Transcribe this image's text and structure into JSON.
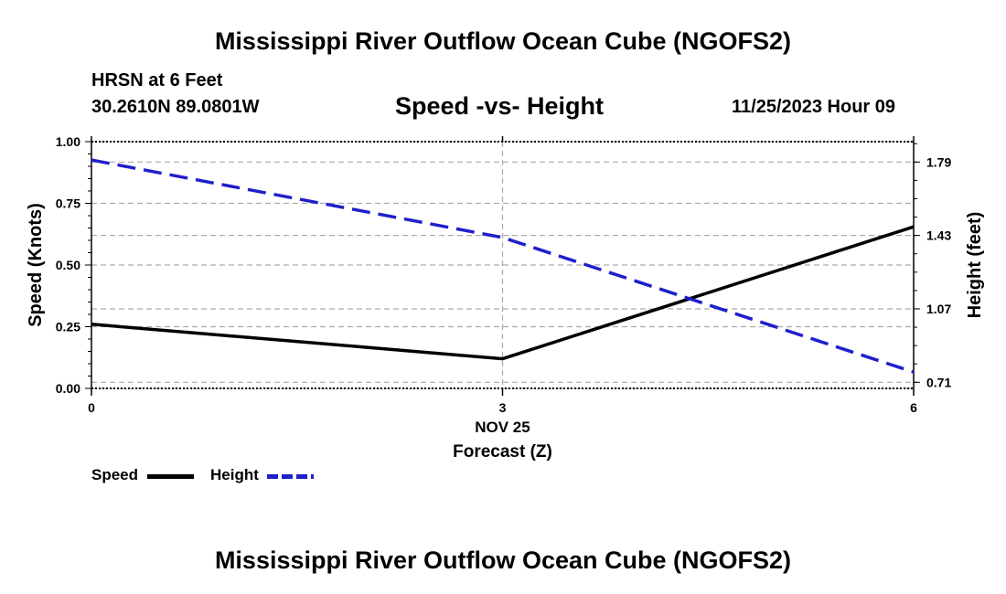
{
  "header": {
    "title": "Mississippi River Outflow Ocean Cube (NGOFS2)",
    "station": "HRSN at 6 Feet",
    "coords": "30.2610N  89.0801W",
    "subtitle": "Speed -vs- Height",
    "datetime": "11/25/2023 Hour 09"
  },
  "footer": {
    "title": "Mississippi River Outflow Ocean Cube (NGOFS2)"
  },
  "legend": {
    "speed_label": "Speed",
    "height_label": "Height",
    "speed_color": "#000000",
    "height_color": "#1f1fcc"
  },
  "chart_data": {
    "type": "line",
    "x": [
      0,
      3,
      6
    ],
    "xlim": [
      0,
      6
    ],
    "xticks": [
      "0",
      "3",
      "6"
    ],
    "xlabel_date": "NOV 25",
    "xlabel": "Forecast (Z)",
    "y_left": {
      "label": "Speed (Knots)",
      "lim": [
        0,
        1
      ],
      "ticks": [
        "0.00",
        "0.25",
        "0.50",
        "0.75",
        "1.00"
      ]
    },
    "y_right": {
      "label": "Height (feet)",
      "lim": [
        0.68,
        1.89
      ],
      "ticks": [
        "0.71",
        "1.07",
        "1.43",
        "1.79"
      ]
    },
    "series": [
      {
        "name": "Speed",
        "axis": "left",
        "values": [
          0.26,
          0.12,
          0.655
        ],
        "style": "solid"
      },
      {
        "name": "Height",
        "axis": "right",
        "values": [
          1.8,
          1.42,
          0.76
        ],
        "style": "dashed"
      }
    ]
  }
}
